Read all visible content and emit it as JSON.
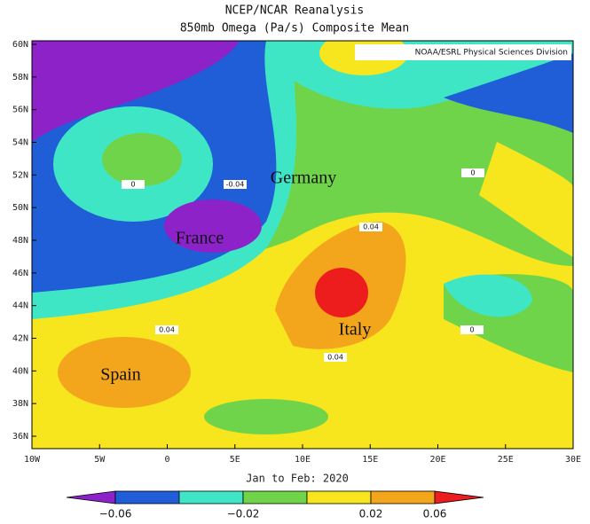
{
  "title": "NCEP/NCAR Reanalysis",
  "subtitle": "850mb Omega (Pa/s) Composite Mean",
  "credit": "NOAA/ESRL Physical Sciences Division",
  "lat_labels": [
    "60N",
    "58N",
    "56N",
    "54N",
    "52N",
    "50N",
    "48N",
    "46N",
    "44N",
    "42N",
    "40N",
    "38N",
    "36N"
  ],
  "lon_labels": [
    "10W",
    "5W",
    "0",
    "5E",
    "10E",
    "15E",
    "20E",
    "25E",
    "30E"
  ],
  "countries": [
    "Germany",
    "France",
    "Italy",
    "Spain"
  ],
  "contour_labels": [
    "0",
    "-0.04",
    "0",
    "0.04",
    "0.04",
    "0.04",
    "0"
  ],
  "footer": "Jan to Feb: 2020",
  "colorbar": {
    "colors": [
      "#8d22c9",
      "#1f5ed6",
      "#3fe6c6",
      "#70d44a",
      "#f7e51e",
      "#f3a61c",
      "#ee1d1d"
    ],
    "labels": [
      "−0.06",
      "−0.02",
      "0.02",
      "0.06"
    ]
  }
}
